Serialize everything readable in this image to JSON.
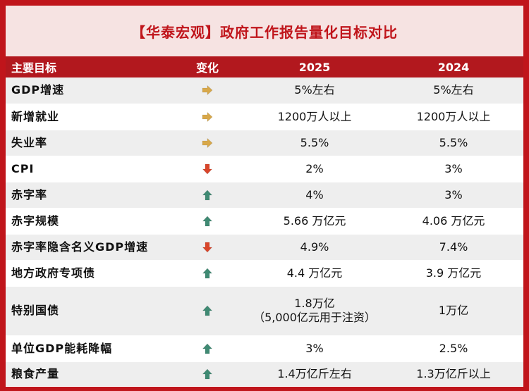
{
  "title": "【华泰宏观】政府工作报告量化目标对比",
  "headers": {
    "target": "主要目标",
    "change": "变化",
    "y2025": "2025",
    "y2024": "2024"
  },
  "colors": {
    "frame": "#c0151b",
    "header_bg": "#b2181e",
    "title_bg": "#f6e3e2",
    "arrow_flat": "#d8a84a",
    "arrow_down": "#d9452a",
    "arrow_up": "#3f8a73"
  },
  "rows": [
    {
      "target": "GDP增速",
      "change": "arrow-right-icon",
      "v2025": "5%左右",
      "v2024": "5%左右"
    },
    {
      "target": "新增就业",
      "change": "arrow-right-icon",
      "v2025": "1200万人以上",
      "v2024": "1200万人以上"
    },
    {
      "target": "失业率",
      "change": "arrow-right-icon",
      "v2025": "5.5%",
      "v2024": "5.5%"
    },
    {
      "target": "CPI",
      "change": "arrow-down-icon",
      "v2025": "2%",
      "v2024": "3%"
    },
    {
      "target": "赤字率",
      "change": "arrow-up-icon",
      "v2025": "4%",
      "v2024": "3%"
    },
    {
      "target": "赤字规模",
      "change": "arrow-up-icon",
      "v2025": "5.66 万亿元",
      "v2024": "4.06 万亿元"
    },
    {
      "target": "赤字率隐含名义GDP增速",
      "change": "arrow-down-icon",
      "v2025": "4.9%",
      "v2024": "7.4%"
    },
    {
      "target": "地方政府专项债",
      "change": "arrow-up-icon",
      "v2025": "4.4 万亿元",
      "v2024": "3.9 万亿元"
    },
    {
      "target": "特别国债",
      "change": "arrow-up-icon",
      "v2025": "1.8万亿",
      "v2025_note": "（5,000亿元用于注资）",
      "v2024": "1万亿"
    },
    {
      "target": "单位GDP能耗降幅",
      "change": "arrow-up-icon",
      "v2025": "3%",
      "v2024": "2.5%"
    },
    {
      "target": "粮食产量",
      "change": "arrow-up-icon",
      "v2025": "1.4万亿斤左右",
      "v2024": "1.3万亿斤以上"
    }
  ]
}
